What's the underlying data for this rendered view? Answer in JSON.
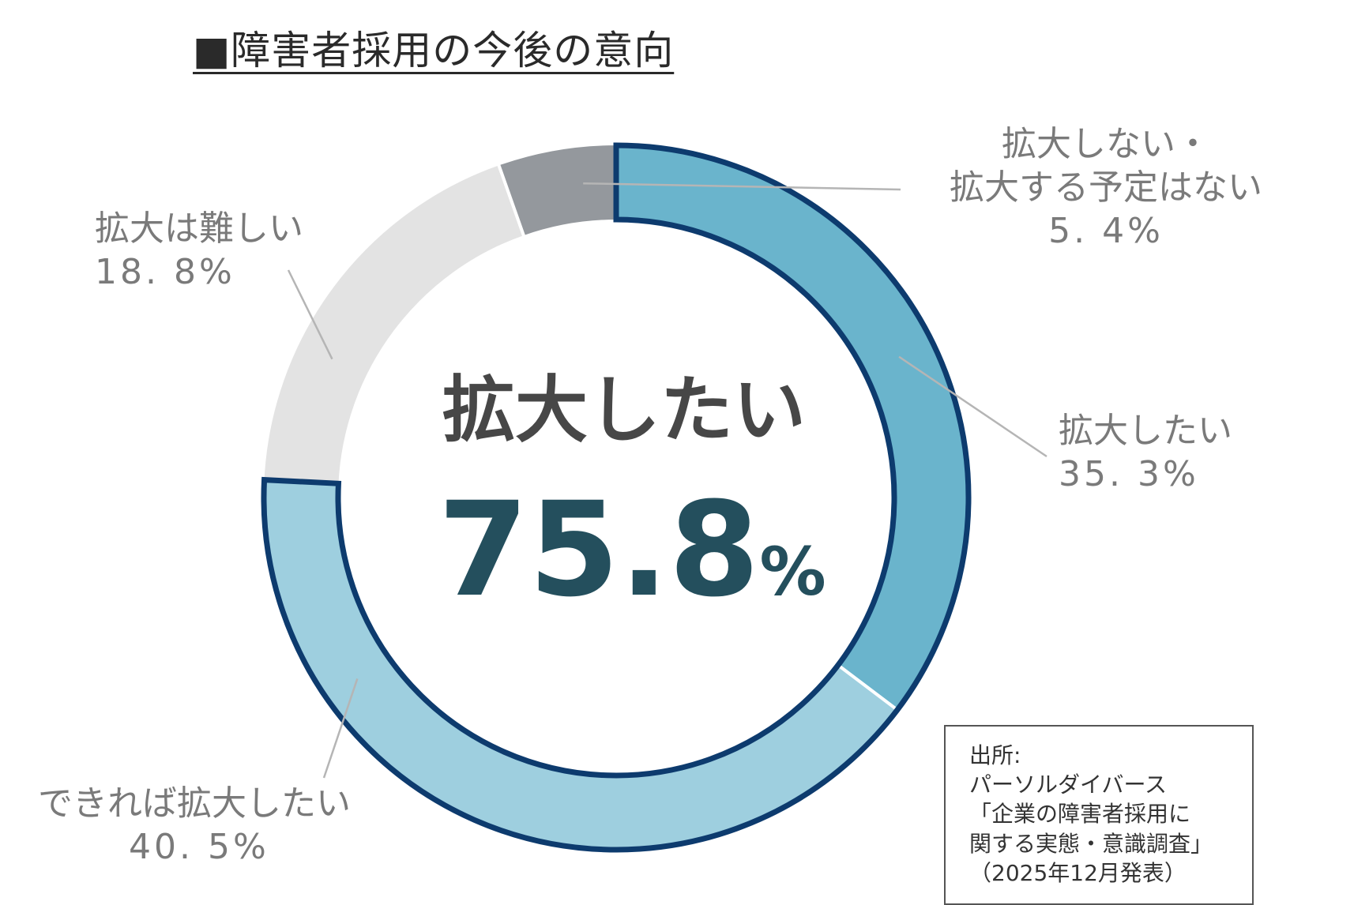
{
  "title": "■障害者採用の今後の意向",
  "chart_data": {
    "type": "pie",
    "categories": [
      "拡大したい",
      "できれば拡大したい",
      "拡大は難しい",
      "拡大しない・拡大する予定はない"
    ],
    "values": [
      35.3,
      40.5,
      18.8,
      5.4
    ],
    "colors": [
      "#6ab4cc",
      "#9ecfdf",
      "#e3e3e3",
      "#94989d"
    ],
    "highlight_color": "#0d3b6e",
    "highlight_total": 75.8,
    "labels": [
      {
        "text": "拡大したい",
        "pct": "35. 3%"
      },
      {
        "text": "できれば拡大したい",
        "pct": "40. 5%"
      },
      {
        "text": "拡大は難しい",
        "pct": "18. 8%"
      },
      {
        "lines": [
          "拡大しない・",
          "拡大する予定はない"
        ],
        "pct": "5. 4%"
      }
    ]
  },
  "center": {
    "label": "拡大したい",
    "value": "75.8",
    "unit": "%"
  },
  "source": {
    "lines": [
      "出所:",
      "パーソルダイバース",
      "「企業の障害者採用に",
      "関する実態・意識調査」",
      "（2025年12月発表）"
    ]
  }
}
